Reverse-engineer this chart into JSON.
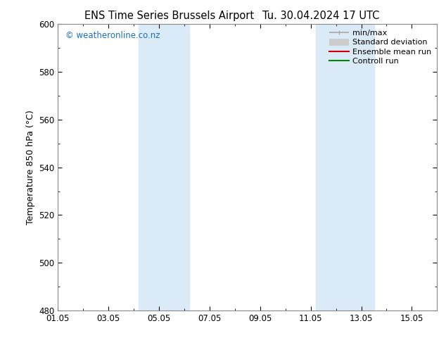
{
  "title_left": "ENS Time Series Brussels Airport",
  "title_right": "Tu. 30.04.2024 17 UTC",
  "ylabel": "Temperature 850 hPa (°C)",
  "ylim": [
    480,
    600
  ],
  "yticks": [
    480,
    500,
    520,
    540,
    560,
    580,
    600
  ],
  "xlim_start": 0.0,
  "xlim_end": 15.0,
  "xtick_labels": [
    "01.05",
    "03.05",
    "05.05",
    "07.05",
    "09.05",
    "11.05",
    "13.05",
    "15.05"
  ],
  "xtick_positions": [
    0,
    2,
    4,
    6,
    8,
    10,
    12,
    14
  ],
  "shaded_bands": [
    {
      "x_start": 3.2,
      "x_end": 5.2
    },
    {
      "x_start": 10.2,
      "x_end": 12.5
    }
  ],
  "shade_color": "#daeaf7",
  "watermark": "© weatheronline.co.nz",
  "watermark_color": "#1a6ebd",
  "bg_color": "#ffffff",
  "spine_color": "#888888",
  "legend_items": [
    {
      "label": "min/max",
      "color": "#aaaaaa",
      "lw": 1.2,
      "style": "minmax"
    },
    {
      "label": "Standard deviation",
      "color": "#cccccc",
      "lw": 7,
      "style": "band"
    },
    {
      "label": "Ensemble mean run",
      "color": "#cc0000",
      "lw": 1.5,
      "style": "line"
    },
    {
      "label": "Controll run",
      "color": "#008800",
      "lw": 1.5,
      "style": "line"
    }
  ],
  "title_fontsize": 10.5,
  "label_fontsize": 9,
  "tick_fontsize": 8.5,
  "legend_fontsize": 8,
  "watermark_fontsize": 8.5
}
